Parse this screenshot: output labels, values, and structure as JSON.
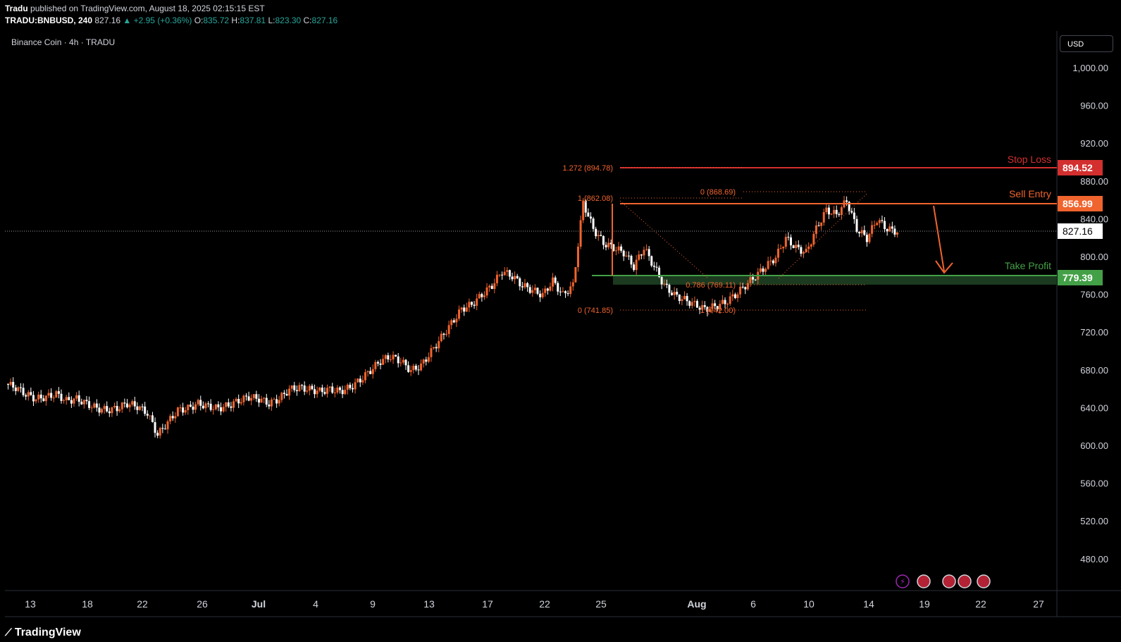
{
  "header": {
    "author": "Tradu",
    "published": "published on TradingView.com, August 18, 2025 02:15:15 EST",
    "symbol": "TRADU:BNBUSD, 240",
    "last": "827.16",
    "change": "▲ +2.95 (+0.36%)",
    "o_label": "O:",
    "o": "835.72",
    "h_label": "H:",
    "h": "837.81",
    "l_label": "L:",
    "l": "823.30",
    "c_label": "C:",
    "c": "827.16"
  },
  "chart_title": "Binance Coin · 4h · TRADU",
  "currency": "USD",
  "price_axis": [
    "1,000.00",
    "960.00",
    "920.00",
    "880.00",
    "840.00",
    "800.00",
    "760.00",
    "720.00",
    "680.00",
    "640.00",
    "600.00",
    "560.00",
    "520.00",
    "480.00"
  ],
  "time_axis": [
    "13",
    "18",
    "22",
    "26",
    "Jul",
    "4",
    "9",
    "13",
    "17",
    "22",
    "25",
    "Aug",
    "6",
    "10",
    "14",
    "19",
    "22",
    "27"
  ],
  "levels": {
    "stop_loss": {
      "label": "Stop Loss",
      "price": "894.52",
      "color": "#d32f2f"
    },
    "sell_entry": {
      "label": "Sell Entry",
      "price": "856.99",
      "color": "#f0642e"
    },
    "take_profit": {
      "label": "Take Profit",
      "price": "779.39",
      "color": "#43a047"
    },
    "current": {
      "price": "827.16"
    }
  },
  "fib": {
    "ext": "1.272 (894.78)",
    "left_top": "1 (862.08)",
    "left_bottom": "0 (741.85)",
    "mid": "0.786 (769.11)",
    "right_top": "0 (868.69)",
    "right_bottom": "1 (742.00)"
  },
  "colors": {
    "up": "#f0642e",
    "down": "#ffffff",
    "bg": "#000000"
  },
  "brand": "TradingView",
  "chart_data": {
    "type": "candlestick",
    "ylim": [
      445,
      1020
    ],
    "series_close": [
      666,
      662,
      655,
      650,
      652,
      655,
      648,
      650,
      645,
      640,
      638,
      640,
      645,
      642,
      635,
      612,
      625,
      638,
      640,
      645,
      642,
      640,
      643,
      648,
      652,
      650,
      645,
      650,
      660,
      662,
      660,
      658,
      660,
      658,
      662,
      670,
      680,
      690,
      695,
      690,
      680,
      685,
      700,
      715,
      730,
      745,
      750,
      760,
      770,
      785,
      780,
      770,
      765,
      760,
      775,
      760,
      770,
      858,
      830,
      815,
      810,
      805,
      790,
      810,
      790,
      770,
      760,
      755,
      750,
      745,
      748,
      752,
      760,
      770,
      780,
      790,
      800,
      820,
      810,
      805,
      830,
      850,
      845,
      860,
      830,
      820,
      840,
      830,
      827
    ]
  }
}
